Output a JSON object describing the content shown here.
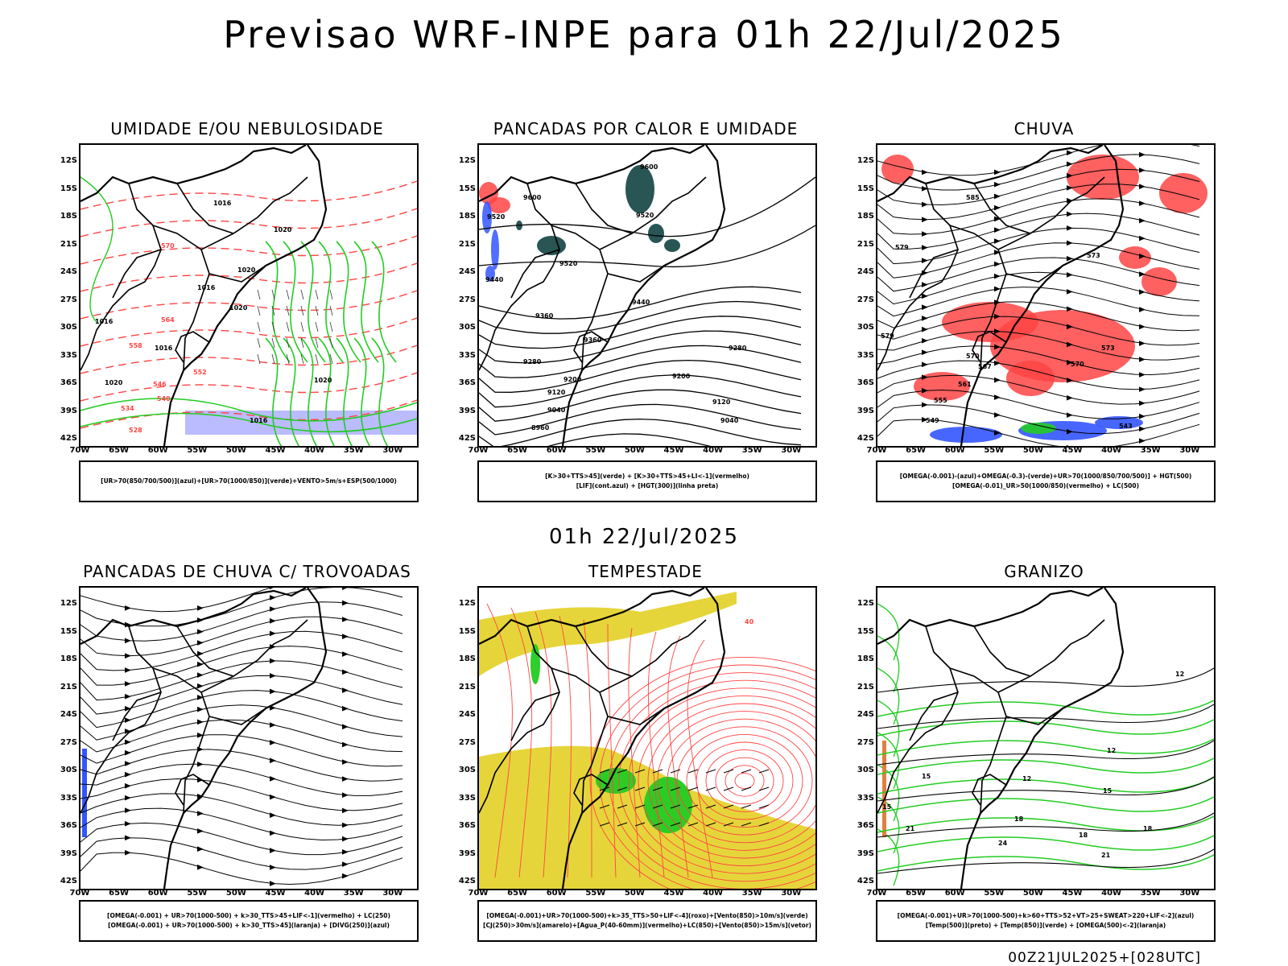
{
  "header": {
    "title": "Previsao WRF-INPE  para 01h 22/Jul/2025"
  },
  "subheader": {
    "time": "01h 22/Jul/2025"
  },
  "footer": {
    "run": "00Z21JUL2025+[028UTC]"
  },
  "axes": {
    "lat_labels": [
      "12S",
      "15S",
      "18S",
      "21S",
      "24S",
      "27S",
      "30S",
      "33S",
      "36S",
      "39S",
      "42S"
    ],
    "lon_labels": [
      "70W",
      "65W",
      "60W",
      "55W",
      "50W",
      "45W",
      "40W",
      "35W",
      "30W"
    ]
  },
  "panels": [
    {
      "title": "UMIDADE E/OU NEBULOSIDADE",
      "legend": [
        "[UR>70(850/700/500)](azul)+[UR>70(1000/850)](verde)+VENTO>5m/s+ESP(500/1000)"
      ],
      "labels": [
        "1016",
        "1020",
        "1016",
        "1020",
        "1020",
        "1016",
        "1020",
        "1016",
        "1016",
        "1020",
        "570",
        "564",
        "558",
        "552",
        "546",
        "540",
        "534",
        "528"
      ]
    },
    {
      "title": "PANCADAS POR CALOR E UMIDADE",
      "legend": [
        "[K>30+TTS>45](verde) + [K>30+TTS>45+LI<-1](vermelho)",
        "[LIF](cont.azul) + [HGT(300)](linha preta)"
      ],
      "labels": [
        "9600",
        "9600",
        "9520",
        "9520",
        "9520",
        "9440",
        "9440",
        "9360",
        "9360",
        "9280",
        "9280",
        "9200",
        "9200",
        "9120",
        "9120",
        "9040",
        "9040",
        "8960"
      ]
    },
    {
      "title": "CHUVA",
      "legend": [
        "[OMEGA(-0.001)-(azul)+OMEGA(-0.3)-(verde)+UR>70(1000/850/700/500)] + HGT(500)",
        "[OMEGA(-0.01)_UR>50(1000/850)(vermelho) + LC(500)"
      ],
      "labels": [
        "585",
        "579",
        "573",
        "579",
        "570",
        "567",
        "573",
        "570",
        "561",
        "555",
        "549",
        "543"
      ]
    },
    {
      "title": "PANCADAS DE CHUVA C/ TROVOADAS",
      "legend": [
        "[OMEGA(-0.001) + UR>70(1000-500) + k>30_TTS>45+LIF<-1](vermelho) + LC(250)",
        "[OMEGA(-0.001) + UR>70(1000-500) + k>30_TTS>45](laranja) + [DIVG(250)](azul)"
      ],
      "labels": []
    },
    {
      "title": "TEMPESTADE",
      "legend": [
        "[OMEGA(-0.001)+UR>70(1000-500)+k>35_TTS>50+LIF<-4](roxo)+[Vento(850)>10m/s](verde)",
        "[CJ(250)>30m/s](amarelo)+[Agua_P(40-60mm)](vermelho)+LC(850)+[Vento(850)>15m/s](vetor)"
      ],
      "labels": [
        "40"
      ]
    },
    {
      "title": "GRANIZO",
      "legend": [
        "[OMEGA(-0.001)+UR>70(1000-500)+k>60+TTS>52+VT>25+SWEAT>220+LIF<-2](azul)",
        "[Temp(500)](preto) + [Temp(850)](verde) + [OMEGA(500)<-2](laranja)"
      ],
      "labels": [
        "12",
        "12",
        "12",
        "15",
        "15",
        "15",
        "18",
        "18",
        "21",
        "21",
        "24",
        "18"
      ]
    }
  ],
  "colors": {
    "green": "#22cc22",
    "red": "#ff4444",
    "blue": "#3355ff",
    "yellow": "#e6d53a",
    "lavender": "#aaaaff",
    "teal": "#1e4c4c"
  }
}
